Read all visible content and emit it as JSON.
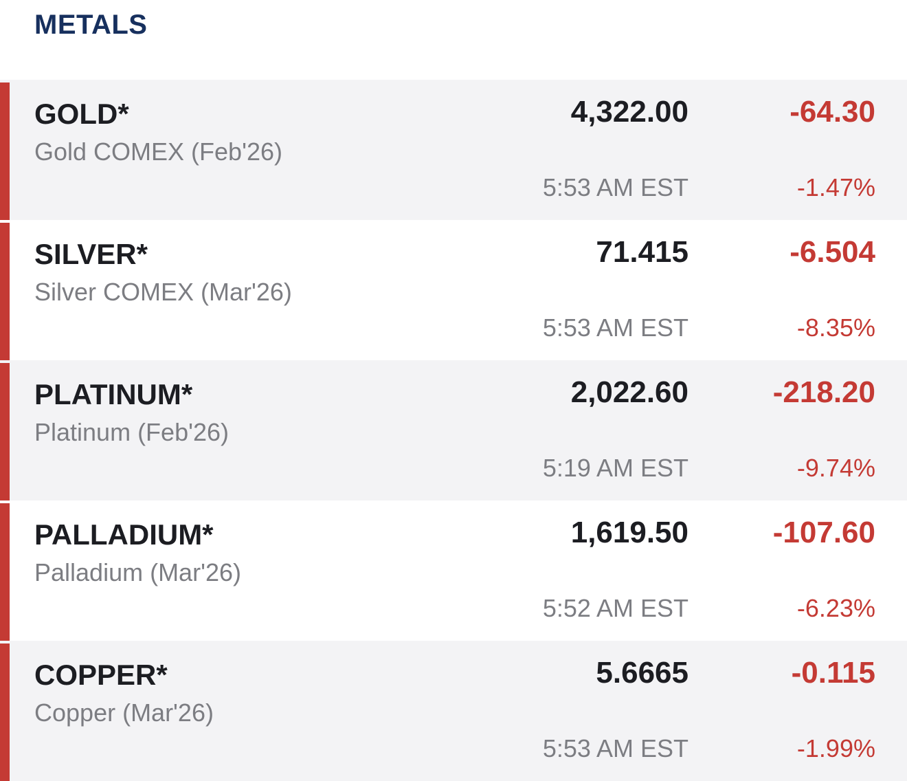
{
  "header": {
    "title": "METALS"
  },
  "colors": {
    "title": "#17305e",
    "negative": "#c43a34",
    "accent_bar": "#c43a34",
    "row_shade": "#f3f3f5"
  },
  "quotes": [
    {
      "symbol": "GOLD*",
      "name": "Gold COMEX (Feb'26)",
      "last": "4,322.00",
      "change": "-64.30",
      "change_pct": "-1.47%",
      "time": "5:53 AM EST"
    },
    {
      "symbol": "SILVER*",
      "name": "Silver COMEX (Mar'26)",
      "last": "71.415",
      "change": "-6.504",
      "change_pct": "-8.35%",
      "time": "5:53 AM EST"
    },
    {
      "symbol": "PLATINUM*",
      "name": "Platinum (Feb'26)",
      "last": "2,022.60",
      "change": "-218.20",
      "change_pct": "-9.74%",
      "time": "5:19 AM EST"
    },
    {
      "symbol": "PALLADIUM*",
      "name": "Palladium (Mar'26)",
      "last": "1,619.50",
      "change": "-107.60",
      "change_pct": "-6.23%",
      "time": "5:52 AM EST"
    },
    {
      "symbol": "COPPER*",
      "name": "Copper (Mar'26)",
      "last": "5.6665",
      "change": "-0.115",
      "change_pct": "-1.99%",
      "time": "5:53 AM EST"
    }
  ]
}
